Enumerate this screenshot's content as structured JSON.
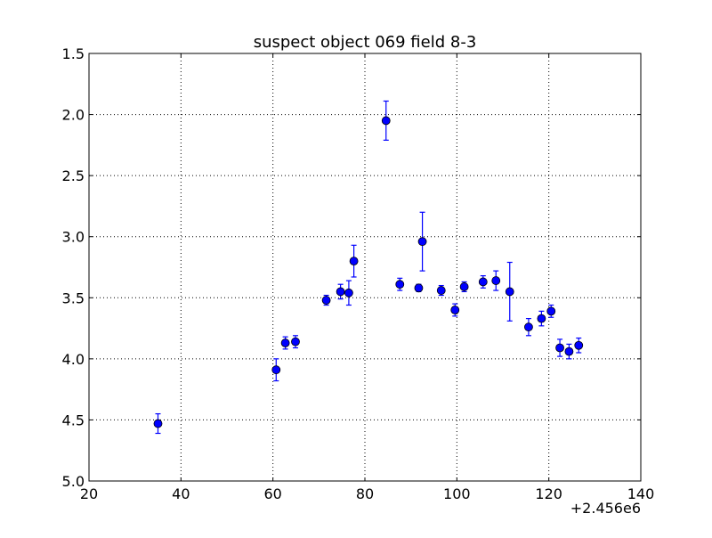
{
  "chart_data": {
    "type": "scatter",
    "title": "suspect object 069 field 8-3",
    "xlabel": "",
    "ylabel": "",
    "x_offset_label": "+2.456e6",
    "xlim": [
      20,
      140
    ],
    "ylim": [
      1.5,
      5.0
    ],
    "y_inverted": true,
    "grid": true,
    "x_ticks": [
      "20",
      "40",
      "60",
      "80",
      "100",
      "120",
      "140"
    ],
    "y_ticks": [
      "1.5",
      "2.0",
      "2.5",
      "3.0",
      "3.5",
      "4.0",
      "4.5",
      "5.0"
    ],
    "marker_color": "#0000ff",
    "errorbar_color": "#0000ff",
    "series": [
      {
        "points": [
          {
            "x": 35.0,
            "y": 4.53,
            "err": 0.08
          },
          {
            "x": 60.7,
            "y": 4.09,
            "err": 0.09
          },
          {
            "x": 62.7,
            "y": 3.87,
            "err": 0.05
          },
          {
            "x": 64.9,
            "y": 3.86,
            "err": 0.05
          },
          {
            "x": 71.6,
            "y": 3.52,
            "err": 0.04
          },
          {
            "x": 74.7,
            "y": 3.45,
            "err": 0.06
          },
          {
            "x": 76.5,
            "y": 3.46,
            "err": 0.1
          },
          {
            "x": 77.6,
            "y": 3.2,
            "err": 0.13
          },
          {
            "x": 84.6,
            "y": 2.05,
            "err": 0.16
          },
          {
            "x": 87.6,
            "y": 3.39,
            "err": 0.05
          },
          {
            "x": 91.7,
            "y": 3.42,
            "err": 0.03
          },
          {
            "x": 92.5,
            "y": 3.04,
            "err": 0.24
          },
          {
            "x": 96.6,
            "y": 3.44,
            "err": 0.04
          },
          {
            "x": 99.6,
            "y": 3.6,
            "err": 0.05
          },
          {
            "x": 101.6,
            "y": 3.41,
            "err": 0.04
          },
          {
            "x": 105.7,
            "y": 3.37,
            "err": 0.05
          },
          {
            "x": 108.5,
            "y": 3.36,
            "err": 0.08
          },
          {
            "x": 111.5,
            "y": 3.45,
            "err": 0.24
          },
          {
            "x": 115.6,
            "y": 3.74,
            "err": 0.07
          },
          {
            "x": 118.4,
            "y": 3.67,
            "err": 0.06
          },
          {
            "x": 120.5,
            "y": 3.61,
            "err": 0.05
          },
          {
            "x": 122.4,
            "y": 3.91,
            "err": 0.07
          },
          {
            "x": 124.4,
            "y": 3.94,
            "err": 0.06
          },
          {
            "x": 126.5,
            "y": 3.89,
            "err": 0.06
          }
        ]
      }
    ]
  }
}
